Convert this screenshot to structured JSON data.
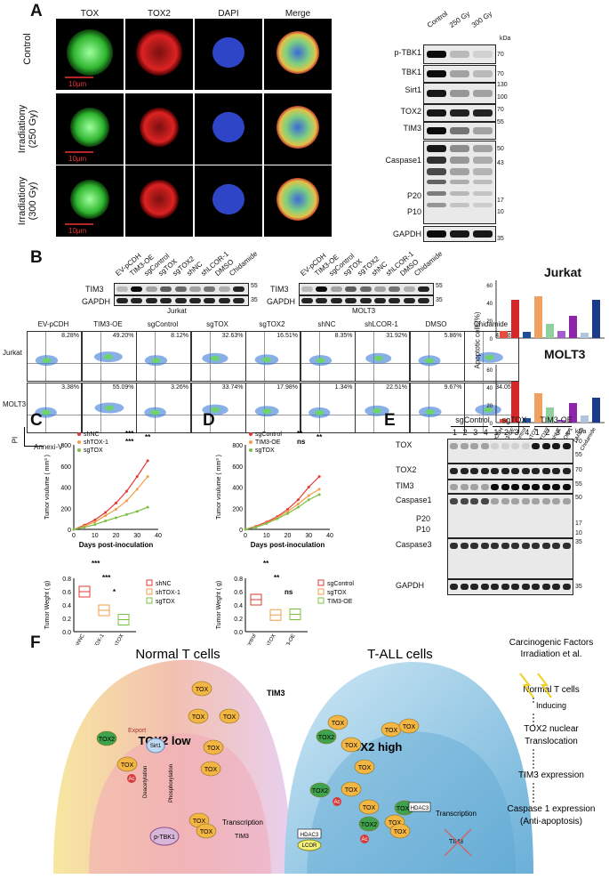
{
  "panelA": {
    "label": "A",
    "columns": [
      "TOX",
      "TOX2",
      "DAPI",
      "Merge"
    ],
    "rows": [
      "Control",
      "Irradiationy\n(250 Gy)",
      "Irradiationy\n(300 Gy)"
    ],
    "row_lines": [
      [
        "Control"
      ],
      [
        "Irradiationy",
        "(250 Gy)"
      ],
      [
        "Irradiationy",
        "(300 Gy)"
      ]
    ],
    "scalebar": "10μm",
    "blot_lanes": [
      "Control",
      "250 Gy",
      "300 Gy"
    ],
    "kda": "kDa",
    "blots": [
      {
        "name": "p-TBK1",
        "marks": [
          "70"
        ]
      },
      {
        "name": "TBK1",
        "marks": [
          "70"
        ]
      },
      {
        "name": "Sirt1",
        "marks": [
          "130",
          "100"
        ]
      },
      {
        "name": "TOX2",
        "marks": [
          "70"
        ]
      },
      {
        "name": "TIM3",
        "marks": [
          "55"
        ]
      },
      {
        "name": "Caspase1",
        "marks": [
          "50",
          "43",
          "17",
          "10"
        ]
      },
      {
        "name": "P20",
        "marks": []
      },
      {
        "name": "P10",
        "marks": []
      },
      {
        "name": "GAPDH",
        "marks": [
          "35"
        ]
      }
    ]
  },
  "panelB": {
    "label": "B",
    "lanes": [
      "EV-pCDH",
      "TIM3-OE",
      "sgControl",
      "sgTOX",
      "sgTOX2",
      "shNC",
      "shLCOR-1",
      "DMSO",
      "Chidamide"
    ],
    "blot_rows": [
      "TIM3",
      "GAPDH"
    ],
    "cell_lines": [
      "Jurkat",
      "MOLT3"
    ],
    "marks": [
      "55",
      "35"
    ],
    "jurkat_pct": [
      "8.28%",
      "49.20%",
      "8.12%",
      "32.63%",
      "16.51%",
      "8.35%",
      "31.92%",
      "5.86%",
      "41.98%"
    ],
    "molt3_pct": [
      "3.38%",
      "55.09%",
      "3.26%",
      "33.74%",
      "17.98%",
      "1.34%",
      "22.51%",
      "9.67%",
      "34.05%"
    ],
    "axis_y": "PI",
    "axis_x": "Annexi-V",
    "bar_title_1": "Jurkat",
    "bar_title_2": "MOLT3",
    "bar_ylabel": "Apoptotic cells(%)",
    "bar_ticks": [
      "0",
      "20",
      "40",
      "60",
      "0",
      "20",
      "40",
      "60"
    ],
    "bar_colors": [
      "#e74c3c",
      "#d62728",
      "#1f4e99",
      "#f0a060",
      "#8fd19e",
      "#a55ccf",
      "#8e24aa",
      "#b0c4de",
      "#1a3a8c"
    ],
    "stars": [
      "**",
      "***",
      "*",
      "*",
      "***",
      "*",
      "*",
      "*",
      "*",
      "***"
    ]
  },
  "panelC": {
    "label": "C",
    "legend": [
      "shNC",
      "shTOX-1",
      "sgTOX"
    ],
    "stars": [
      "***",
      "***",
      "**"
    ],
    "ylabel": "Tumor voulume ( mm³ )",
    "xlabel": "Days post-inoculation",
    "yticks": [
      "0",
      "200",
      "400",
      "600",
      "800"
    ],
    "xticks": [
      "0",
      "10",
      "20",
      "30",
      "40"
    ],
    "weight_ylabel": "Tumor Weght ( g)",
    "weight_yticks": [
      "0.0",
      "0.2",
      "0.4",
      "0.6",
      "0.8"
    ],
    "weight_stars": [
      "***",
      "***",
      "*"
    ],
    "weight_legend": [
      "shNC",
      "shTOX-1",
      "sgTOX"
    ]
  },
  "panelD": {
    "label": "D",
    "legend": [
      "sgControl",
      "TIM3-OE",
      "sgTOX"
    ],
    "stars": [
      "**",
      "ns",
      "**"
    ],
    "ylabel": "Tumor voulume ( mm³ )",
    "xlabel": "Days post-inoculation",
    "yticks": [
      "0",
      "200",
      "400",
      "600",
      "800"
    ],
    "xticks": [
      "0",
      "10",
      "20",
      "30",
      "40"
    ],
    "weight_ylabel": "Tumor Weght ( g)",
    "weight_yticks": [
      "0.0",
      "0.2",
      "0.4",
      "0.6",
      "0.8"
    ],
    "weight_stars": [
      "**",
      "**",
      "ns"
    ],
    "weight_legend": [
      "sgControl",
      "sgTOX",
      "TIM3-OE"
    ]
  },
  "panelE": {
    "label": "E",
    "groups": [
      "sgControl",
      "sgTOX",
      "TIM3-OE"
    ],
    "lane_numbers": [
      "1",
      "2",
      "3",
      "4",
      "1",
      "2",
      "3",
      "4",
      "1",
      "2",
      "3",
      "4"
    ],
    "kda": "kDa",
    "blots": [
      {
        "name": "TOX",
        "marks": [
          "70",
          "55"
        ]
      },
      {
        "name": "TOX2",
        "marks": [
          "70"
        ]
      },
      {
        "name": "TIM3",
        "marks": [
          "55"
        ]
      },
      {
        "name": "Caspase1",
        "marks": [
          "50",
          "17",
          "10"
        ]
      },
      {
        "name": "P20",
        "marks": []
      },
      {
        "name": "P10",
        "marks": []
      },
      {
        "name": "Caspase3",
        "marks": [
          "35"
        ]
      },
      {
        "name": "GAPDH",
        "marks": [
          "35"
        ]
      }
    ]
  },
  "panelF": {
    "label": "F",
    "normal_title": "Normal T cells",
    "tall_title": "T-ALL cells",
    "tim3": "TIM3",
    "tox2_low": "TOX2 low",
    "tox2_high": "TOX2 high",
    "tox": "TOX",
    "tox2": "TOX2",
    "export": "Export",
    "sirt1": "Sirt1",
    "deacetylation": "Deacetylation",
    "phosphorylation": "Phosphorylation",
    "ptbk1": "p-TBK1",
    "ac": "Ac",
    "transcription": "Transcription",
    "hdac3": "HDAC3",
    "lcor": "LCOR",
    "flow_steps": [
      "Carcinogenic Factors",
      "Irradiation et al.",
      "Normal T cells",
      "Inducing",
      "TOX2 nuclear",
      "Translocation",
      "TIM3 expression",
      "Caspase 1 expression",
      "(Anti-apoptosis)"
    ]
  }
}
